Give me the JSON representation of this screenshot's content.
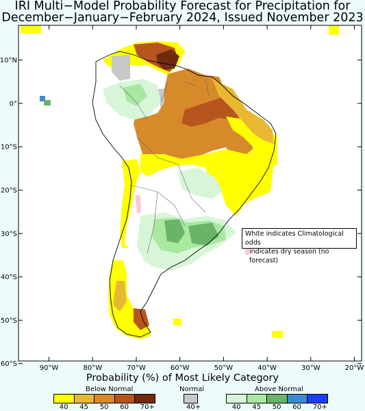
{
  "title_line1": "IRI Multi−Model Probability Forecast for Precipitation for",
  "title_line2": "December−January−February 2024, Issued November 2023",
  "lat_ticks": [
    {
      "label": "10°N",
      "lat": 10
    },
    {
      "label": "0°",
      "lat": 0
    },
    {
      "label": "10°S",
      "lat": -10
    },
    {
      "label": "20°S",
      "lat": -20
    },
    {
      "label": "30°S",
      "lat": -30
    },
    {
      "label": "40°S",
      "lat": -40
    },
    {
      "label": "50°S",
      "lat": -50
    },
    {
      "label": "60°S",
      "lat": -60
    }
  ],
  "lon_ticks": [
    {
      "label": "90°W",
      "lon": -90
    },
    {
      "label": "80°W",
      "lon": -80
    },
    {
      "label": "70°W",
      "lon": -70
    },
    {
      "label": "60°W",
      "lon": -60
    },
    {
      "label": "50°W",
      "lon": -50
    },
    {
      "label": "40°W",
      "lon": -40
    },
    {
      "label": "30°W",
      "lon": -30
    },
    {
      "label": "20°W",
      "lon": -20
    }
  ],
  "legend_note": {
    "line1": "White indicates Climatological odds",
    "line2": "indicates dry season (no forecast)",
    "dry_color": "#ffc8d2"
  },
  "bottom_title": "Probability (%) of Most Likely Category",
  "categories": {
    "below": {
      "label": "Below Normal",
      "colors": [
        "#ffff00",
        "#e8b832",
        "#d68a2a",
        "#b8541e",
        "#6e2b0e"
      ],
      "ticks": [
        "40",
        "45",
        "50",
        "60",
        "70+"
      ]
    },
    "normal": {
      "label": "Normal",
      "colors": [
        "#c8c8c8"
      ],
      "ticks": [
        "40+"
      ]
    },
    "above": {
      "label": "Above Normal",
      "colors": [
        "#d8f5d8",
        "#a8e8a0",
        "#6ab46a",
        "#3c8cd2",
        "#1e3cff"
      ],
      "ticks": [
        "40",
        "45",
        "50",
        "60",
        "70+"
      ]
    }
  }
}
